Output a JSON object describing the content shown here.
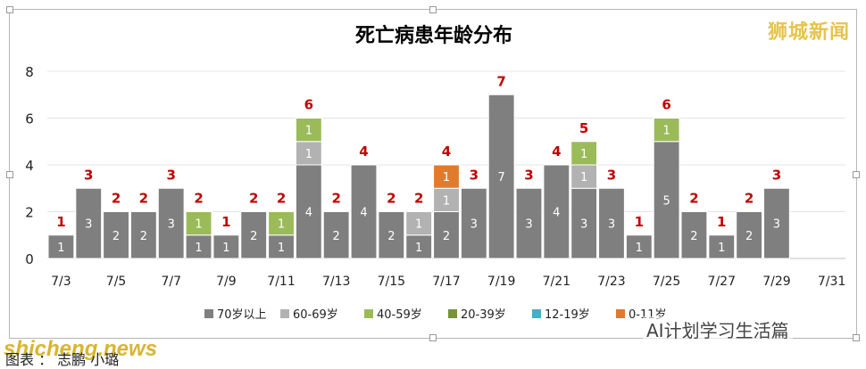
{
  "chart_data": {
    "type": "bar",
    "stacked": true,
    "title": "死亡病患年龄分布",
    "xlabel": "",
    "ylabel": "",
    "ylim": [
      0,
      8
    ],
    "yticks": [
      0,
      2,
      4,
      6,
      8
    ],
    "grid": true,
    "legend_position": "bottom",
    "categories": [
      "7/3",
      "7/4",
      "7/5",
      "7/6",
      "7/7",
      "7/8",
      "7/9",
      "7/10",
      "7/11",
      "7/12",
      "7/13",
      "7/14",
      "7/15",
      "7/16",
      "7/17",
      "7/18",
      "7/19",
      "7/20",
      "7/21",
      "7/22",
      "7/23",
      "7/24",
      "7/25",
      "7/26",
      "7/27",
      "7/28",
      "7/29",
      "7/30",
      "7/31"
    ],
    "xtick_labels": [
      "7/3",
      "",
      "7/5",
      "",
      "7/7",
      "",
      "7/9",
      "",
      "7/11",
      "",
      "7/13",
      "",
      "7/15",
      "",
      "7/17",
      "",
      "7/19",
      "",
      "7/21",
      "",
      "7/23",
      "",
      "7/25",
      "",
      "7/27",
      "",
      "7/29",
      "",
      "7/31"
    ],
    "totals": [
      1,
      3,
      2,
      2,
      3,
      2,
      1,
      2,
      2,
      6,
      2,
      4,
      2,
      2,
      4,
      3,
      7,
      3,
      4,
      5,
      3,
      1,
      6,
      2,
      1,
      2,
      3,
      null,
      null
    ],
    "series": [
      {
        "name": "70岁以上",
        "color": "#7f7f7f",
        "values": [
          1,
          3,
          2,
          2,
          3,
          1,
          1,
          2,
          1,
          4,
          2,
          4,
          2,
          1,
          2,
          3,
          7,
          3,
          4,
          3,
          3,
          1,
          5,
          2,
          1,
          2,
          3,
          0,
          0
        ]
      },
      {
        "name": "60-69岁",
        "color": "#b2b2b2",
        "values": [
          0,
          0,
          0,
          0,
          0,
          0,
          0,
          0,
          0,
          1,
          0,
          0,
          0,
          1,
          1,
          0,
          0,
          0,
          0,
          1,
          0,
          0,
          0,
          0,
          0,
          0,
          0,
          0,
          0
        ]
      },
      {
        "name": "40-59岁",
        "color": "#9bbb59",
        "values": [
          0,
          0,
          0,
          0,
          0,
          1,
          0,
          0,
          1,
          1,
          0,
          0,
          0,
          0,
          0,
          0,
          0,
          0,
          0,
          1,
          0,
          0,
          1,
          0,
          0,
          0,
          0,
          0,
          0
        ]
      },
      {
        "name": "20-39岁",
        "color": "#77933c",
        "values": [
          0,
          0,
          0,
          0,
          0,
          0,
          0,
          0,
          0,
          0,
          0,
          0,
          0,
          0,
          0,
          0,
          0,
          0,
          0,
          0,
          0,
          0,
          0,
          0,
          0,
          0,
          0,
          0,
          0
        ]
      },
      {
        "name": "12-19岁",
        "color": "#4bacc6",
        "values": [
          0,
          0,
          0,
          0,
          0,
          0,
          0,
          0,
          0,
          0,
          0,
          0,
          0,
          0,
          0,
          0,
          0,
          0,
          0,
          0,
          0,
          0,
          0,
          0,
          0,
          0,
          0,
          0,
          0
        ]
      },
      {
        "name": "0-11岁",
        "color": "#e07b2e",
        "values": [
          0,
          0,
          0,
          0,
          0,
          0,
          0,
          0,
          0,
          0,
          0,
          0,
          0,
          0,
          1,
          0,
          0,
          0,
          0,
          0,
          0,
          0,
          0,
          0,
          0,
          0,
          0,
          0,
          0
        ]
      }
    ],
    "total_label_color": "#c00000"
  },
  "watermarks": {
    "top_right": "狮城新闻",
    "bottom_left": "shicheng.news",
    "wechat": "AI计划学习生活篇"
  },
  "caption": "图表 ： 志鹏 小璐"
}
